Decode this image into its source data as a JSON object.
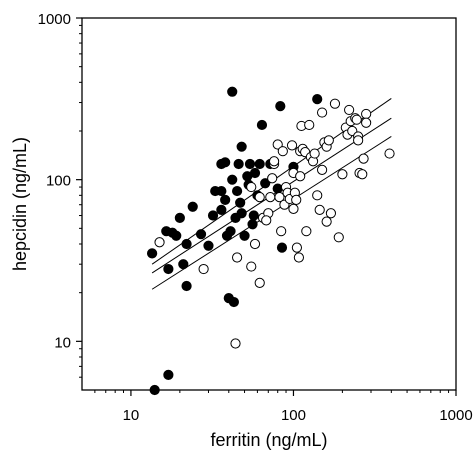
{
  "chart_data": {
    "type": "scatter",
    "title": "",
    "xlabel": "ferritin (ng/mL)",
    "ylabel": "hepcidin (ng/mL)",
    "xscale": "log",
    "yscale": "log",
    "xlim": [
      5,
      1000
    ],
    "ylim": [
      5,
      1000
    ],
    "xticks": [
      {
        "value": 10,
        "label": "10"
      },
      {
        "value": 100,
        "label": "100"
      },
      {
        "value": 1000,
        "label": "1000"
      }
    ],
    "yticks": [
      {
        "value": 10,
        "label": "10"
      },
      {
        "value": 100,
        "label": "100"
      },
      {
        "value": 1000,
        "label": "1000"
      }
    ],
    "grid": false,
    "series": [
      {
        "marker": "filled-circle",
        "color": "#000000",
        "points": [
          [
            14,
            5
          ],
          [
            17,
            6.2
          ],
          [
            13.5,
            35
          ],
          [
            16.5,
            48
          ],
          [
            19,
            45
          ],
          [
            20,
            58
          ],
          [
            21,
            30
          ],
          [
            22,
            40
          ],
          [
            22,
            22
          ],
          [
            24,
            68
          ],
          [
            17,
            28
          ],
          [
            18,
            47
          ],
          [
            27,
            46
          ],
          [
            30,
            39
          ],
          [
            32,
            60
          ],
          [
            33,
            85
          ],
          [
            36,
            85
          ],
          [
            36,
            65
          ],
          [
            38,
            128
          ],
          [
            38,
            75
          ],
          [
            39,
            45
          ],
          [
            41,
            48
          ],
          [
            40,
            18.5
          ],
          [
            42,
            100
          ],
          [
            43,
            17.5
          ],
          [
            44,
            58
          ],
          [
            45,
            85
          ],
          [
            46,
            125
          ],
          [
            47,
            72
          ],
          [
            48,
            160
          ],
          [
            48,
            62
          ],
          [
            50,
            45
          ],
          [
            52,
            105
          ],
          [
            53,
            93
          ],
          [
            54,
            125
          ],
          [
            56,
            53
          ],
          [
            57,
            60
          ],
          [
            58,
            110
          ],
          [
            60,
            80
          ],
          [
            62,
            125
          ],
          [
            64,
            218
          ],
          [
            67,
            95
          ],
          [
            72,
            125
          ],
          [
            80,
            88
          ],
          [
            83,
            285
          ],
          [
            42,
            350
          ],
          [
            85,
            38
          ],
          [
            100,
            120
          ],
          [
            140,
            315
          ],
          [
            36,
            125
          ]
        ]
      },
      {
        "marker": "open-circle",
        "color": "#000000",
        "points": [
          [
            15,
            41
          ],
          [
            28,
            28
          ],
          [
            44,
            9.7
          ],
          [
            45,
            33
          ],
          [
            55,
            29
          ],
          [
            58,
            40
          ],
          [
            62,
            23
          ],
          [
            62,
            78
          ],
          [
            65,
            58
          ],
          [
            70,
            62
          ],
          [
            72,
            78
          ],
          [
            74,
            102
          ],
          [
            76,
            125
          ],
          [
            76,
            130
          ],
          [
            80,
            165
          ],
          [
            82,
            78
          ],
          [
            84,
            48
          ],
          [
            86,
            150
          ],
          [
            88,
            70
          ],
          [
            90,
            90
          ],
          [
            92,
            83
          ],
          [
            95,
            76
          ],
          [
            98,
            163
          ],
          [
            100,
            110
          ],
          [
            102,
            83
          ],
          [
            104,
            75
          ],
          [
            105,
            38
          ],
          [
            108,
            33
          ],
          [
            110,
            105
          ],
          [
            110,
            150
          ],
          [
            112,
            215
          ],
          [
            114,
            155
          ],
          [
            118,
            148
          ],
          [
            120,
            48
          ],
          [
            125,
            218
          ],
          [
            128,
            138
          ],
          [
            132,
            130
          ],
          [
            140,
            80
          ],
          [
            145,
            65
          ],
          [
            150,
            115
          ],
          [
            150,
            260
          ],
          [
            155,
            170
          ],
          [
            160,
            160
          ],
          [
            165,
            175
          ],
          [
            170,
            62
          ],
          [
            180,
            295
          ],
          [
            190,
            44
          ],
          [
            200,
            108
          ],
          [
            210,
            210
          ],
          [
            215,
            190
          ],
          [
            220,
            270
          ],
          [
            225,
            230
          ],
          [
            230,
            200
          ],
          [
            240,
            240
          ],
          [
            250,
            185
          ],
          [
            255,
            110
          ],
          [
            265,
            108
          ],
          [
            270,
            135
          ],
          [
            280,
            255
          ],
          [
            390,
            145
          ],
          [
            245,
            235
          ],
          [
            280,
            225
          ],
          [
            55,
            90
          ],
          [
            160,
            55
          ],
          [
            100,
            66
          ],
          [
            68,
            56
          ],
          [
            135,
            145
          ],
          [
            250,
            175
          ]
        ]
      }
    ],
    "lines": [
      {
        "role": "fit",
        "x": [
          13.5,
          400
        ],
        "y": [
          26.5,
          240
        ]
      },
      {
        "role": "upper-band",
        "x": [
          13.5,
          400
        ],
        "y": [
          30,
          318
        ]
      },
      {
        "role": "lower-band",
        "x": [
          13.5,
          400
        ],
        "y": [
          21,
          185
        ]
      }
    ]
  }
}
